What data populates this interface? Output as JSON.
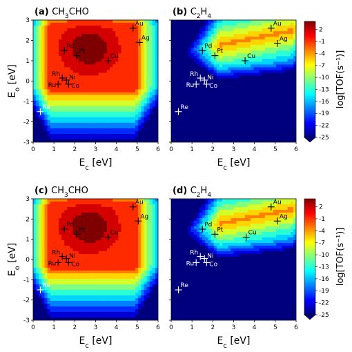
{
  "chart_data": [
    {
      "type": "heatmap",
      "panel_letter": "(a)",
      "title_pre": "CH",
      "title_sub1": "3",
      "title_mid": "CHO",
      "title_sub2": "",
      "reaction": "CH3CHO",
      "xlabel_main": "E",
      "xlabel_sub": "c",
      "xlabel_unit": " [eV]",
      "ylabel_main": "E",
      "ylabel_sub": "o",
      "ylabel_unit": " [eV]",
      "xlim": [
        0,
        6
      ],
      "ylim": [
        -3,
        3
      ],
      "xticks": [
        "0",
        "1",
        "2",
        "3",
        "4",
        "5",
        "6"
      ],
      "yticks": [
        "-3",
        "-2",
        "-1",
        "0",
        "1",
        "2",
        "3"
      ],
      "markers": [
        {
          "name": "Au",
          "x": 4.8,
          "y": 2.6
        },
        {
          "name": "Ag",
          "x": 5.1,
          "y": 1.9
        },
        {
          "name": "Pd",
          "x": 1.5,
          "y": 1.5
        },
        {
          "name": "Pt",
          "x": 2.1,
          "y": 1.25
        },
        {
          "name": "Cu",
          "x": 3.6,
          "y": 1.0
        },
        {
          "name": "Rh",
          "x": 1.4,
          "y": 0.15
        },
        {
          "name": "Ni",
          "x": 1.6,
          "y": 0.05
        },
        {
          "name": "Ru",
          "x": 1.2,
          "y": -0.15
        },
        {
          "name": "Co",
          "x": 1.7,
          "y": -0.15
        },
        {
          "name": "Re",
          "x": 0.35,
          "y": -1.5
        }
      ]
    },
    {
      "type": "heatmap",
      "panel_letter": "(b)",
      "title_pre": "C",
      "title_sub1": "2",
      "title_mid": "H",
      "title_sub2": "4",
      "reaction": "C2H4",
      "xlabel_main": "E",
      "xlabel_sub": "c",
      "xlabel_unit": " [eV]",
      "xlim": [
        0,
        6
      ],
      "ylim": [
        -3,
        3
      ],
      "xticks": [
        "0",
        "1",
        "2",
        "3",
        "4",
        "5",
        "6"
      ],
      "markers": [
        {
          "name": "Au",
          "x": 4.8,
          "y": 2.6
        },
        {
          "name": "Ag",
          "x": 5.1,
          "y": 1.85
        },
        {
          "name": "Pd",
          "x": 1.5,
          "y": 1.5
        },
        {
          "name": "Pt",
          "x": 2.1,
          "y": 1.25
        },
        {
          "name": "Cu",
          "x": 3.55,
          "y": 1.0
        },
        {
          "name": "Rh",
          "x": 1.4,
          "y": 0.15
        },
        {
          "name": "Ni",
          "x": 1.6,
          "y": 0.05
        },
        {
          "name": "Ru",
          "x": 1.2,
          "y": -0.15
        },
        {
          "name": "Co",
          "x": 1.7,
          "y": -0.15
        },
        {
          "name": "Re",
          "x": 0.35,
          "y": -1.5
        }
      ],
      "colorbar": {
        "label": "log[TOF(s⁻¹)]",
        "ticks": [
          "2",
          "-1",
          "-4",
          "-7",
          "-10",
          "-13",
          "-16",
          "-19",
          "-22",
          "-25"
        ],
        "range": [
          -25,
          4
        ]
      }
    },
    {
      "type": "heatmap",
      "panel_letter": "(c)",
      "title_pre": "CH",
      "title_sub1": "3",
      "title_mid": "CHO",
      "title_sub2": "",
      "reaction": "CH3CHO",
      "xlabel_main": "E",
      "xlabel_sub": "c",
      "xlabel_unit": " [eV]",
      "ylabel_main": "E",
      "ylabel_sub": "o",
      "ylabel_unit": " [eV]",
      "xlim": [
        0,
        6
      ],
      "ylim": [
        -3,
        3
      ],
      "xticks": [
        "0",
        "1",
        "2",
        "3",
        "4",
        "5",
        "6"
      ],
      "yticks": [
        "-3",
        "-2",
        "-1",
        "0",
        "1",
        "2",
        "3"
      ],
      "markers": [
        {
          "name": "Au",
          "x": 4.8,
          "y": 2.6
        },
        {
          "name": "Ag",
          "x": 5.05,
          "y": 1.9
        },
        {
          "name": "Pd",
          "x": 1.5,
          "y": 1.5
        },
        {
          "name": "Pt",
          "x": 2.1,
          "y": 1.25
        },
        {
          "name": "Cu",
          "x": 3.6,
          "y": 1.1
        },
        {
          "name": "Rh",
          "x": 1.4,
          "y": 0.15
        },
        {
          "name": "Ni",
          "x": 1.6,
          "y": 0.05
        },
        {
          "name": "Ru",
          "x": 1.2,
          "y": -0.15
        },
        {
          "name": "Co",
          "x": 1.7,
          "y": -0.15
        },
        {
          "name": "Re",
          "x": 0.35,
          "y": -1.5
        }
      ]
    },
    {
      "type": "heatmap",
      "panel_letter": "(d)",
      "title_pre": "C",
      "title_sub1": "2",
      "title_mid": "H",
      "title_sub2": "4",
      "reaction": "C2H4",
      "xlabel_main": "E",
      "xlabel_sub": "c",
      "xlabel_unit": " [eV]",
      "xlim": [
        0,
        6
      ],
      "ylim": [
        -3,
        3
      ],
      "xticks": [
        "0",
        "1",
        "2",
        "3",
        "4",
        "5",
        "6"
      ],
      "markers": [
        {
          "name": "Au",
          "x": 4.8,
          "y": 2.6
        },
        {
          "name": "Ag",
          "x": 5.1,
          "y": 1.9
        },
        {
          "name": "Pd",
          "x": 1.5,
          "y": 1.5
        },
        {
          "name": "Pt",
          "x": 2.1,
          "y": 1.25
        },
        {
          "name": "Cu",
          "x": 3.6,
          "y": 1.1
        },
        {
          "name": "Rh",
          "x": 1.4,
          "y": 0.15
        },
        {
          "name": "Ni",
          "x": 1.6,
          "y": 0.05
        },
        {
          "name": "Ru",
          "x": 1.2,
          "y": -0.15
        },
        {
          "name": "Co",
          "x": 1.7,
          "y": -0.15
        },
        {
          "name": "Re",
          "x": 0.35,
          "y": -1.5
        }
      ],
      "colorbar": {
        "label": "log[TOF(s⁻¹)]",
        "ticks": [
          "2",
          "-1",
          "-4",
          "-7",
          "-10",
          "-13",
          "-16",
          "-19",
          "-22",
          "-25"
        ],
        "range": [
          -25,
          4
        ]
      }
    }
  ],
  "colormap": [
    "#00007f",
    "#0000ff",
    "#0080ff",
    "#00ffff",
    "#80ff80",
    "#ffff00",
    "#ff8000",
    "#ff0000",
    "#7f0000"
  ]
}
